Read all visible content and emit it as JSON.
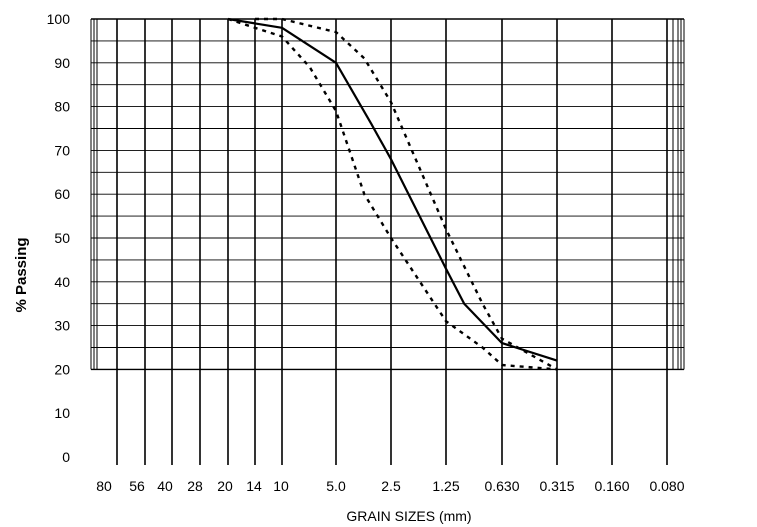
{
  "chart_data": {
    "type": "line",
    "title": "",
    "xlabel": "GRAIN SIZES (mm)",
    "ylabel": "% Passing",
    "ylim": [
      0,
      100
    ],
    "y_ticks": [
      0,
      10,
      20,
      30,
      40,
      50,
      60,
      70,
      80,
      90,
      100
    ],
    "x_ticks": [
      "80",
      "56",
      "40",
      "28",
      "20",
      "14",
      "10",
      "5.0",
      "2.5",
      "1.25",
      "0.630",
      "0.315",
      "0.160",
      "0.080"
    ],
    "x_scale": "log-reversed",
    "grid": true,
    "series": [
      {
        "style": "solid",
        "x": [
          20,
          14,
          10,
          5.0,
          3.2,
          2.5,
          1.25,
          1.0,
          0.63,
          0.315
        ],
        "y": [
          100,
          99,
          98,
          90,
          76,
          68,
          43,
          35,
          26,
          22
        ]
      },
      {
        "style": "dashed",
        "x": [
          14,
          10,
          5.0,
          3.5,
          2.5,
          1.25,
          0.8,
          0.63,
          0.315
        ],
        "y": [
          100,
          100,
          97,
          91,
          81,
          52,
          35,
          27,
          20
        ]
      },
      {
        "style": "dashed",
        "x": [
          20,
          14,
          10,
          7.0,
          5.0,
          3.5,
          2.5,
          1.25,
          0.8,
          0.63,
          0.315
        ],
        "y": [
          100,
          98,
          96,
          89,
          79,
          60,
          50,
          31,
          25,
          21,
          20
        ]
      }
    ]
  }
}
